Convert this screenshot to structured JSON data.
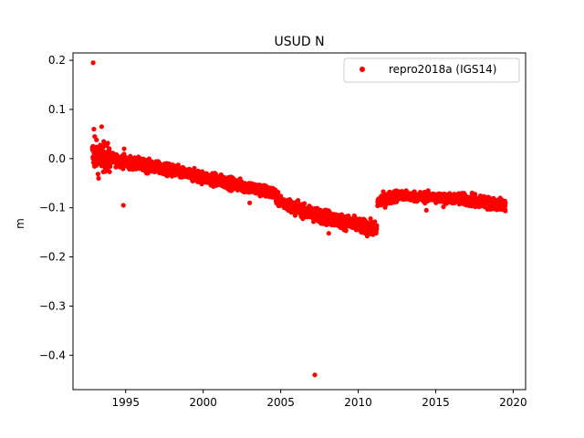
{
  "chart_data": {
    "type": "scatter",
    "title": "USUD N",
    "xlabel": "",
    "ylabel": "m",
    "xlim": [
      1991.6,
      2020.8
    ],
    "ylim": [
      -0.47,
      0.215
    ],
    "xticks": [
      1995,
      2000,
      2005,
      2010,
      2015,
      2020
    ],
    "yticks": [
      0.2,
      0.1,
      0.0,
      -0.1,
      -0.2,
      -0.3,
      -0.4
    ],
    "ytick_labels": [
      "0.2",
      "0.1",
      "0.0",
      "−0.1",
      "−0.2",
      "−0.3",
      "−0.4"
    ],
    "grid": false,
    "legend_position": "top-right",
    "color": "#ff0000",
    "series": [
      {
        "name": "repro2018a (IGS14)",
        "segments": [
          {
            "x_start": 1992.85,
            "x_end": 1994.0,
            "y_start": 0.008,
            "y_end": 0.0,
            "spread": 0.014
          },
          {
            "x_start": 1994.0,
            "x_end": 1998.0,
            "y_start": 0.0,
            "y_end": -0.025,
            "spread": 0.006
          },
          {
            "x_start": 1998.0,
            "x_end": 2002.5,
            "y_start": -0.025,
            "y_end": -0.055,
            "spread": 0.006
          },
          {
            "x_start": 2002.5,
            "x_end": 2004.7,
            "y_start": -0.055,
            "y_end": -0.072,
            "spread": 0.006
          },
          {
            "x_start": 2004.7,
            "x_end": 2006.5,
            "y_start": -0.082,
            "y_end": -0.108,
            "spread": 0.006
          },
          {
            "x_start": 2006.5,
            "x_end": 2011.2,
            "y_start": -0.108,
            "y_end": -0.145,
            "spread": 0.007
          },
          {
            "x_start": 2011.25,
            "x_end": 2012.5,
            "y_start": -0.088,
            "y_end": -0.075,
            "spread": 0.006
          },
          {
            "x_start": 2012.5,
            "x_end": 2016.5,
            "y_start": -0.075,
            "y_end": -0.082,
            "spread": 0.005
          },
          {
            "x_start": 2016.5,
            "x_end": 2019.5,
            "y_start": -0.082,
            "y_end": -0.095,
            "spread": 0.006
          }
        ],
        "outliers": [
          {
            "x": 1992.9,
            "y": 0.195
          },
          {
            "x": 1992.95,
            "y": 0.06
          },
          {
            "x": 1993.0,
            "y": 0.045
          },
          {
            "x": 1993.45,
            "y": 0.065
          },
          {
            "x": 1993.25,
            "y": -0.04
          },
          {
            "x": 1994.85,
            "y": -0.095
          },
          {
            "x": 1994.9,
            "y": 0.02
          },
          {
            "x": 2000.6,
            "y": -0.03
          },
          {
            "x": 2003.0,
            "y": -0.09
          },
          {
            "x": 2008.1,
            "y": -0.152
          },
          {
            "x": 2007.2,
            "y": -0.44
          },
          {
            "x": 2014.4,
            "y": -0.105
          },
          {
            "x": 2015.5,
            "y": -0.098
          }
        ]
      }
    ]
  }
}
